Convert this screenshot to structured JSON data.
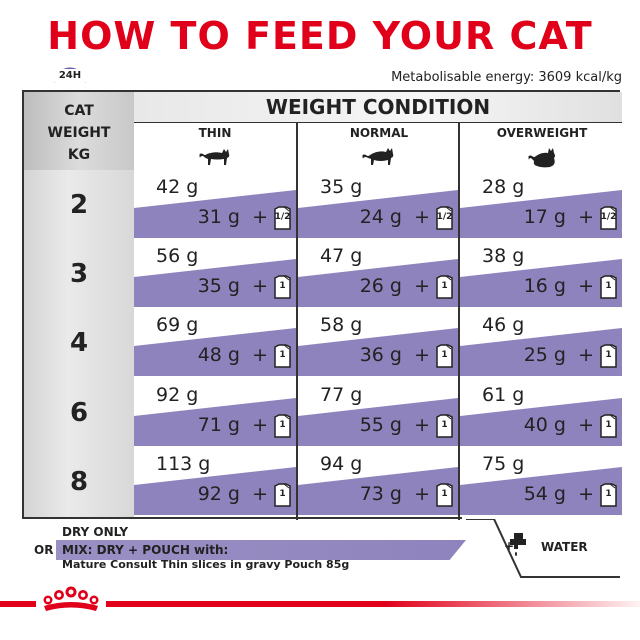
{
  "title": "HOW TO FEED YOUR CAT",
  "clock_label": "24H",
  "energy": "Metabolisable energy: 3609 kcal/kg",
  "side_header": [
    "CAT",
    "WEIGHT",
    "KG"
  ],
  "weight_condition": "WEIGHT CONDITION",
  "columns": [
    {
      "label": "THIN",
      "icon": "thin-cat-icon"
    },
    {
      "label": "NORMAL",
      "icon": "normal-cat-icon"
    },
    {
      "label": "OVERWEIGHT",
      "icon": "overweight-cat-icon"
    }
  ],
  "rows": [
    {
      "weight": "2",
      "cells": [
        {
          "dry": "42 g",
          "mix": "31 g  +",
          "pouch": "1/2"
        },
        {
          "dry": "35 g",
          "mix": "24 g  +",
          "pouch": "1/2"
        },
        {
          "dry": "28 g",
          "mix": "17 g  +",
          "pouch": "1/2"
        }
      ]
    },
    {
      "weight": "3",
      "cells": [
        {
          "dry": "56 g",
          "mix": "35 g  +",
          "pouch": "1"
        },
        {
          "dry": "47 g",
          "mix": "26 g  +",
          "pouch": "1"
        },
        {
          "dry": "38 g",
          "mix": "16 g  +",
          "pouch": "1"
        }
      ]
    },
    {
      "weight": "4",
      "cells": [
        {
          "dry": "69 g",
          "mix": "48 g  +",
          "pouch": "1"
        },
        {
          "dry": "58 g",
          "mix": "36 g  +",
          "pouch": "1"
        },
        {
          "dry": "46 g",
          "mix": "25 g  +",
          "pouch": "1"
        }
      ]
    },
    {
      "weight": "6",
      "cells": [
        {
          "dry": "92 g",
          "mix": "71 g  +",
          "pouch": "1"
        },
        {
          "dry": "77 g",
          "mix": "55 g  +",
          "pouch": "1"
        },
        {
          "dry": "61 g",
          "mix": "40 g  +",
          "pouch": "1"
        }
      ]
    },
    {
      "weight": "8",
      "cells": [
        {
          "dry": "113 g",
          "mix": "92 g  +",
          "pouch": "1"
        },
        {
          "dry": "94 g",
          "mix": "73 g  +",
          "pouch": "1"
        },
        {
          "dry": "75 g",
          "mix": "54 g  +",
          "pouch": "1"
        }
      ]
    }
  ],
  "legend": {
    "dry_only": "DRY ONLY",
    "or": "OR",
    "mix": "MIX: DRY + POUCH with:",
    "mix_sub": "Mature Consult Thin slices in gravy Pouch 85g",
    "water": "WATER",
    "water_icon": "water-tap-icon"
  },
  "colors": {
    "title_red": "#e1001a",
    "mix_purple": "#8f83bd",
    "clock_purple": "#6b5aa8"
  }
}
